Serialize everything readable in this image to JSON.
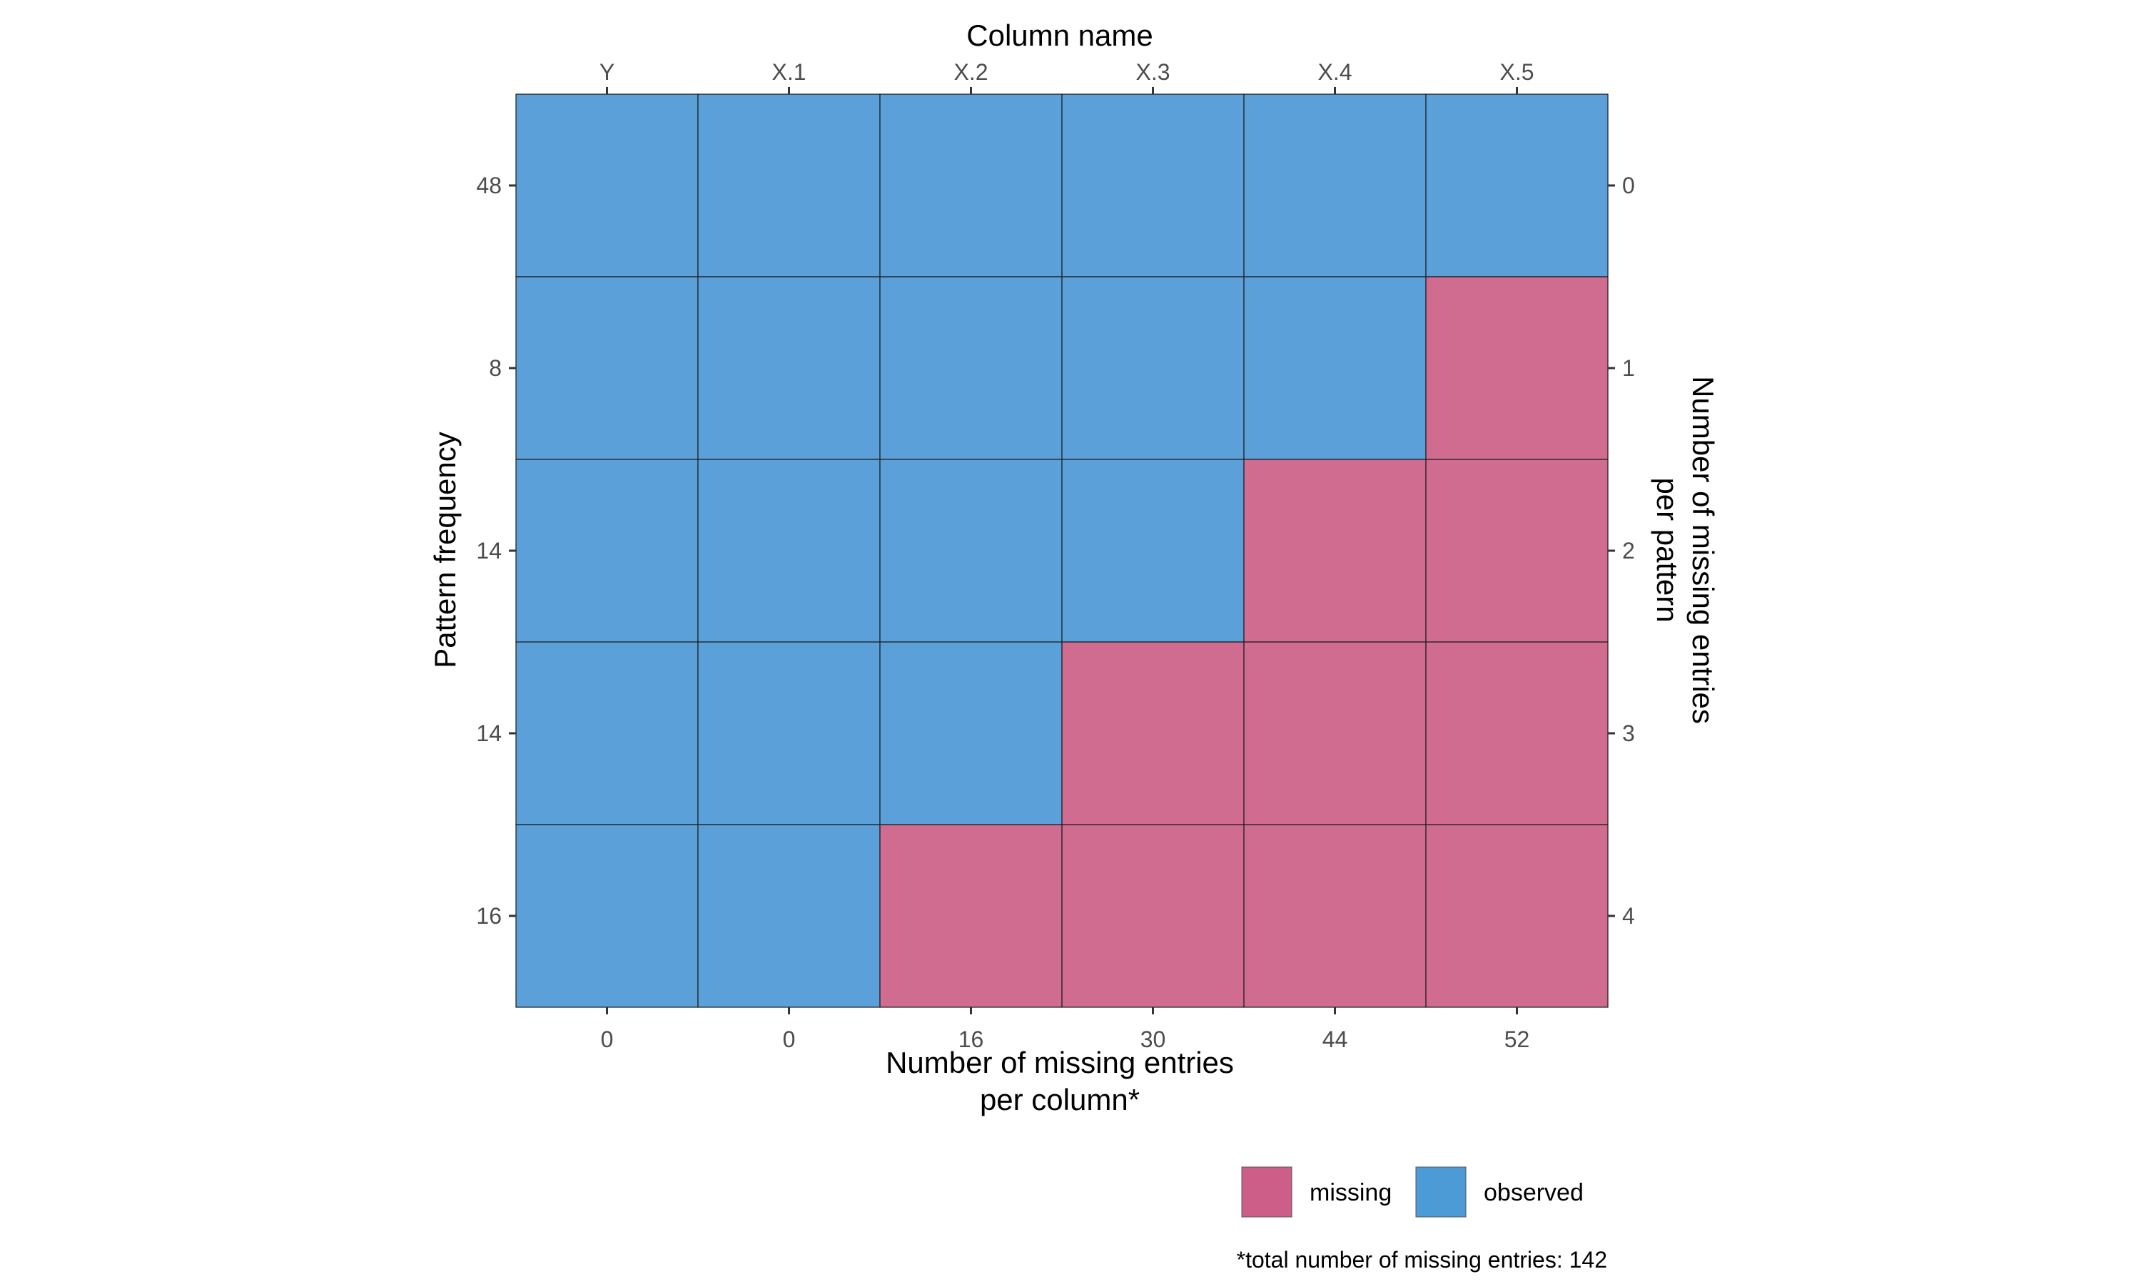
{
  "chart_data": {
    "type": "heatmap",
    "top_axis_title": "Column name",
    "columns": [
      "Y",
      "X.1",
      "X.2",
      "X.3",
      "X.4",
      "X.5"
    ],
    "bottom_axis_title_lines": [
      "Number of missing entries",
      "per column*"
    ],
    "missing_per_column": [
      "0",
      "0",
      "16",
      "30",
      "44",
      "52"
    ],
    "left_axis_title": "Pattern frequency",
    "pattern_frequency": [
      "48",
      "8",
      "14",
      "14",
      "16"
    ],
    "right_axis_title_lines": [
      "Number of missing entries",
      "per pattern"
    ],
    "missing_per_pattern": [
      "0",
      "1",
      "2",
      "3",
      "4"
    ],
    "cells": [
      [
        "observed",
        "observed",
        "observed",
        "observed",
        "observed",
        "observed"
      ],
      [
        "observed",
        "observed",
        "observed",
        "observed",
        "observed",
        "missing"
      ],
      [
        "observed",
        "observed",
        "observed",
        "observed",
        "missing",
        "missing"
      ],
      [
        "observed",
        "observed",
        "observed",
        "missing",
        "missing",
        "missing"
      ],
      [
        "observed",
        "observed",
        "missing",
        "missing",
        "missing",
        "missing"
      ]
    ],
    "legend": [
      {
        "key": "missing",
        "label": "missing",
        "color": "#cc5e87"
      },
      {
        "key": "observed",
        "label": "observed",
        "color": "#4c9ad6"
      }
    ],
    "cell_colors": {
      "missing": "#d06c8f",
      "observed": "#5ba0d8"
    },
    "caption": "*total number of missing entries: 142",
    "grid": false
  }
}
